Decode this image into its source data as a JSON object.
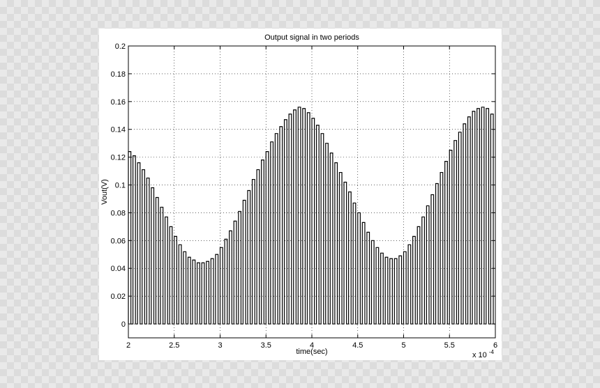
{
  "chart_data": {
    "type": "line",
    "title": "Output signal in two periods",
    "xlabel": "time(sec)",
    "ylabel": "Vout(V)",
    "x_multiplier_label": "x 10",
    "x_multiplier_exponent": "-4",
    "xlim": [
      2,
      6
    ],
    "ylim": [
      -0.01,
      0.2
    ],
    "x_ticks": [
      2,
      2.5,
      3,
      3.5,
      4,
      4.5,
      5,
      5.5,
      6
    ],
    "x_tick_labels": [
      "2",
      "2.5",
      "3",
      "3.5",
      "4",
      "4.5",
      "5",
      "5.5",
      "6"
    ],
    "y_ticks": [
      0,
      0.02,
      0.04,
      0.06,
      0.08,
      0.1,
      0.12,
      0.14,
      0.16,
      0.18,
      0.2
    ],
    "y_tick_labels": [
      "0",
      "0.02",
      "0.04",
      "0.06",
      "0.08",
      "0.1",
      "0.12",
      "0.14",
      "0.16",
      "0.18",
      "0.2"
    ],
    "grid": true,
    "line_color": "#000000",
    "series": [
      {
        "x": [
          2.0,
          2.05,
          2.1,
          2.15,
          2.2,
          2.25,
          2.3,
          2.35,
          2.4,
          2.45,
          2.5,
          2.55,
          2.6,
          2.65,
          2.7,
          2.75,
          2.8,
          2.85,
          2.9,
          2.95,
          3.0,
          3.05,
          3.1,
          3.15,
          3.2,
          3.25,
          3.3,
          3.35,
          3.4,
          3.45,
          3.5,
          3.55,
          3.6,
          3.65,
          3.7,
          3.75,
          3.8,
          3.85,
          3.9,
          3.95,
          4.0,
          4.05,
          4.1,
          4.15,
          4.2,
          4.25,
          4.3,
          4.35,
          4.4,
          4.45,
          4.5,
          4.55,
          4.6,
          4.65,
          4.7,
          4.75,
          4.8,
          4.85,
          4.9,
          4.95,
          5.0,
          5.05,
          5.1,
          5.15,
          5.2,
          5.25,
          5.3,
          5.35,
          5.4,
          5.45,
          5.5,
          5.55,
          5.6,
          5.65,
          5.7,
          5.75,
          5.8,
          5.85,
          5.9,
          5.95
        ],
        "peaks": [
          0.124,
          0.121,
          0.116,
          0.111,
          0.105,
          0.098,
          0.091,
          0.084,
          0.077,
          0.07,
          0.063,
          0.057,
          0.052,
          0.048,
          0.046,
          0.044,
          0.044,
          0.045,
          0.047,
          0.05,
          0.055,
          0.061,
          0.067,
          0.074,
          0.081,
          0.089,
          0.096,
          0.104,
          0.111,
          0.118,
          0.124,
          0.131,
          0.137,
          0.142,
          0.147,
          0.151,
          0.154,
          0.156,
          0.155,
          0.152,
          0.148,
          0.143,
          0.137,
          0.13,
          0.123,
          0.116,
          0.109,
          0.102,
          0.095,
          0.087,
          0.08,
          0.073,
          0.066,
          0.06,
          0.055,
          0.051,
          0.048,
          0.047,
          0.047,
          0.049,
          0.052,
          0.057,
          0.063,
          0.07,
          0.077,
          0.085,
          0.093,
          0.101,
          0.109,
          0.117,
          0.125,
          0.132,
          0.138,
          0.144,
          0.149,
          0.153,
          0.155,
          0.156,
          0.155,
          0.151
        ],
        "low": 0
      }
    ]
  }
}
